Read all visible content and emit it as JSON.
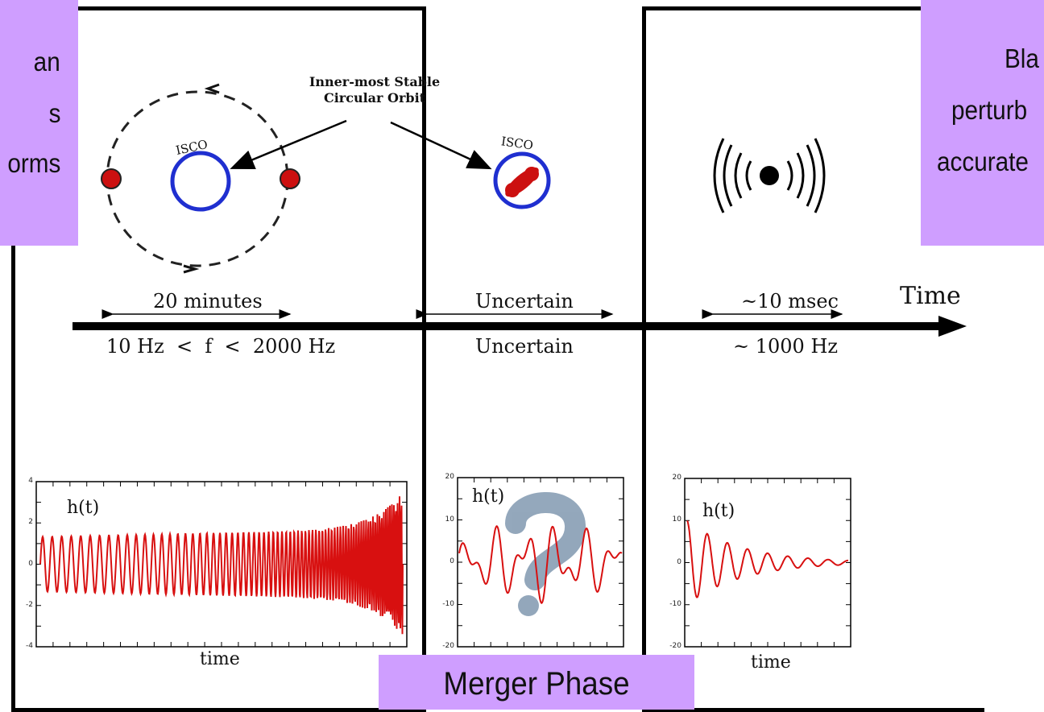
{
  "notes": {
    "left": [
      "an",
      "s",
      "orms"
    ],
    "right": [
      "Bla",
      "perturb",
      "accurate"
    ],
    "merger_phase": "Merger Phase"
  },
  "orbit": {
    "isco_title": [
      "Inner-most Stable",
      "Circular Orbit"
    ],
    "isco_label": "ISCO"
  },
  "timeline": {
    "axis_label": "Time",
    "inspiral_duration": "20 minutes",
    "inspiral_frequency": "10 Hz  <  f  <  2000 Hz",
    "merger_duration": "Uncertain",
    "merger_frequency": "Uncertain",
    "ringdown_duration": "~10 msec",
    "ringdown_frequency": "~ 1000 Hz"
  },
  "plots": [
    {
      "label": "h(t)",
      "xlabel": "time",
      "yticks": [
        "4",
        "2",
        "0",
        "-2",
        "-4"
      ],
      "ylim": [
        -4,
        4
      ]
    },
    {
      "label": "h(t)",
      "xlabel": "",
      "yticks": [
        "20",
        "10",
        "0",
        "-10",
        "-20"
      ],
      "ylim": [
        -20,
        20
      ]
    },
    {
      "label": "h(t)",
      "xlabel": "time",
      "yticks": [
        "20",
        "10",
        "0",
        "-10",
        "-20"
      ],
      "ylim": [
        -20,
        20
      ]
    }
  ],
  "colors": {
    "purple": "#cf9eff",
    "orbit_blue": "#1f2fd0",
    "body_red": "#cc1010",
    "wave_red": "#d81010",
    "question_gray": "#8ea3b8"
  },
  "icons": {
    "question": "question-mark-icon",
    "ringdown": "radiating-black-hole-icon"
  }
}
